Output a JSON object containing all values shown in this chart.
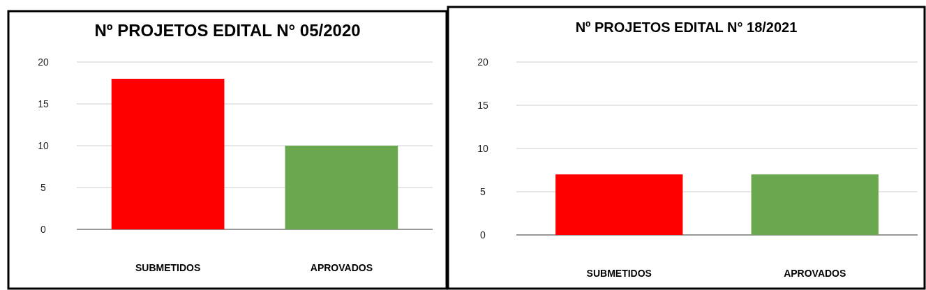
{
  "chart_data": [
    {
      "type": "bar",
      "title": "Nº PROJETOS EDITAL N° 05/2020",
      "categories": [
        "SUBMETIDOS",
        "APROVADOS"
      ],
      "values": [
        18,
        10
      ],
      "colors": [
        "#ff0000",
        "#6aa84f"
      ],
      "ylim": [
        0,
        20
      ],
      "yticks": [
        0,
        5,
        10,
        15,
        20
      ],
      "grid": "y"
    },
    {
      "type": "bar",
      "title": "Nº PROJETOS EDITAL N° 18/2021",
      "categories": [
        "SUBMETIDOS",
        "APROVADOS"
      ],
      "values": [
        7,
        7
      ],
      "colors": [
        "#ff0000",
        "#6aa84f"
      ],
      "ylim": [
        0,
        20
      ],
      "yticks": [
        0,
        5,
        10,
        15,
        20
      ],
      "grid": "y"
    }
  ]
}
